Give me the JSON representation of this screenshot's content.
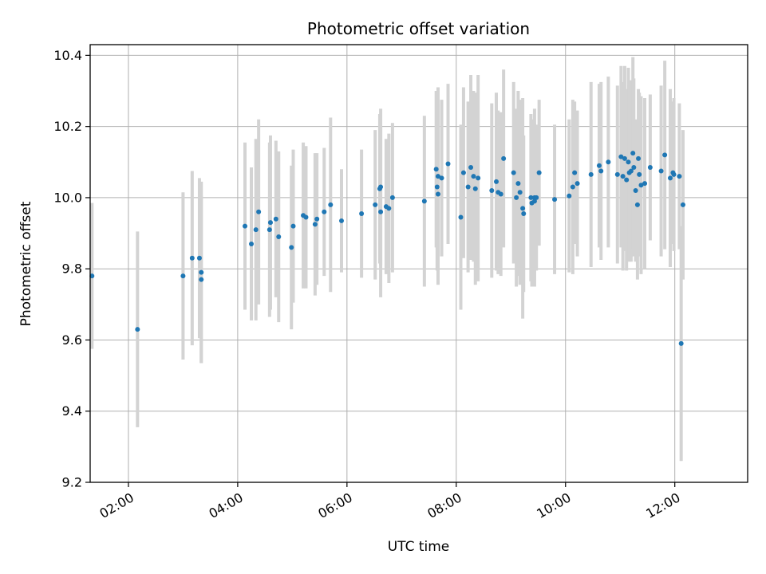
{
  "chart_data": {
    "type": "scatter",
    "title": "Photometric offset variation",
    "xlabel": "UTC time",
    "ylabel": "Photometric offset",
    "x_tick_labels": [
      "02:00",
      "04:00",
      "06:00",
      "08:00",
      "10:00",
      "12:00"
    ],
    "y_tick_labels": [
      "9.2",
      "9.4",
      "9.6",
      "9.8",
      "10.0",
      "10.2",
      "10.4"
    ],
    "xlim": [
      "01:18",
      "13:20"
    ],
    "ylim": [
      9.2,
      10.43
    ],
    "grid": true,
    "legend": "none",
    "error_bar_color": "#d3d3d3",
    "marker_color": "#1f77b4",
    "series": [
      {
        "x": [
          "01:20",
          "02:10",
          "03:00",
          "03:10",
          "03:18",
          "03:20",
          "03:20",
          "04:08",
          "04:15",
          "04:20",
          "04:23",
          "04:35",
          "04:36",
          "04:42",
          "04:45",
          "04:59",
          "05:01",
          "05:12",
          "05:15",
          "05:25",
          "05:27",
          "05:35",
          "05:42",
          "05:54",
          "06:16",
          "06:31",
          "06:36",
          "06:37",
          "06:37",
          "06:43",
          "06:46",
          "06:50",
          "07:25",
          "07:38",
          "07:39",
          "07:40",
          "07:40",
          "07:44",
          "07:51",
          "08:05",
          "08:08",
          "08:13",
          "08:16",
          "08:19",
          "08:21",
          "08:24",
          "08:39",
          "08:44",
          "08:46",
          "08:49",
          "08:52",
          "09:03",
          "09:06",
          "09:08",
          "09:10",
          "09:13",
          "09:14",
          "09:22",
          "09:23",
          "09:26",
          "09:26",
          "09:28",
          "09:31",
          "09:48",
          "10:04",
          "10:08",
          "10:10",
          "10:13",
          "10:28",
          "10:37",
          "10:39",
          "10:47",
          "10:57",
          "11:01",
          "11:03",
          "11:05",
          "11:07",
          "11:09",
          "11:10",
          "11:12",
          "11:14",
          "11:15",
          "11:17",
          "11:19",
          "11:20",
          "11:21",
          "11:23",
          "11:27",
          "11:33",
          "11:45",
          "11:49",
          "11:55",
          "11:58",
          "11:59",
          "12:05",
          "12:07",
          "12:09"
        ],
        "y": [
          9.78,
          9.63,
          9.78,
          9.83,
          9.83,
          9.79,
          9.77,
          9.92,
          9.87,
          9.91,
          9.96,
          9.91,
          9.93,
          9.94,
          9.89,
          9.86,
          9.92,
          9.95,
          9.945,
          9.925,
          9.94,
          9.96,
          9.98,
          9.935,
          9.955,
          9.98,
          10.025,
          10.03,
          9.96,
          9.975,
          9.97,
          10.0,
          9.99,
          10.08,
          10.03,
          10.06,
          10.01,
          10.055,
          10.095,
          9.945,
          10.07,
          10.03,
          10.085,
          10.06,
          10.025,
          10.055,
          10.02,
          10.045,
          10.015,
          10.01,
          10.11,
          10.07,
          10.0,
          10.04,
          10.015,
          9.97,
          9.955,
          10.0,
          9.985,
          10.0,
          9.99,
          10.0,
          10.07,
          9.995,
          10.005,
          10.03,
          10.07,
          10.04,
          10.065,
          10.09,
          10.075,
          10.1,
          10.065,
          10.115,
          10.06,
          10.11,
          10.05,
          10.1,
          10.07,
          10.075,
          10.125,
          10.085,
          10.02,
          9.98,
          10.11,
          10.065,
          10.035,
          10.04,
          10.085,
          10.075,
          10.12,
          10.055,
          10.07,
          10.065,
          10.06,
          9.59,
          9.98
        ],
        "err": [
          0.205,
          0.275,
          0.235,
          0.245,
          0.225,
          0.255,
          0.235,
          0.235,
          0.215,
          0.255,
          0.26,
          0.245,
          0.245,
          0.22,
          0.24,
          0.23,
          0.215,
          0.205,
          0.2,
          0.2,
          0.185,
          0.18,
          0.245,
          0.145,
          0.18,
          0.21,
          0.21,
          0.22,
          0.24,
          0.19,
          0.21,
          0.21,
          0.24,
          0.22,
          0.235,
          0.25,
          0.255,
          0.22,
          0.225,
          0.26,
          0.24,
          0.24,
          0.26,
          0.24,
          0.27,
          0.29,
          0.245,
          0.25,
          0.23,
          0.23,
          0.25,
          0.255,
          0.25,
          0.26,
          0.26,
          0.31,
          0.22,
          0.235,
          0.235,
          0.25,
          0.22,
          0.205,
          0.205,
          0.21,
          0.215,
          0.245,
          0.2,
          0.205,
          0.26,
          0.23,
          0.25,
          0.24,
          0.25,
          0.255,
          0.265,
          0.26,
          0.255,
          0.265,
          0.25,
          0.255,
          0.27,
          0.25,
          0.2,
          0.21,
          0.195,
          0.23,
          0.25,
          0.24,
          0.205,
          0.24,
          0.265,
          0.25,
          0.2,
          0.215,
          0.205,
          0.33,
          0.21
        ]
      }
    ]
  }
}
